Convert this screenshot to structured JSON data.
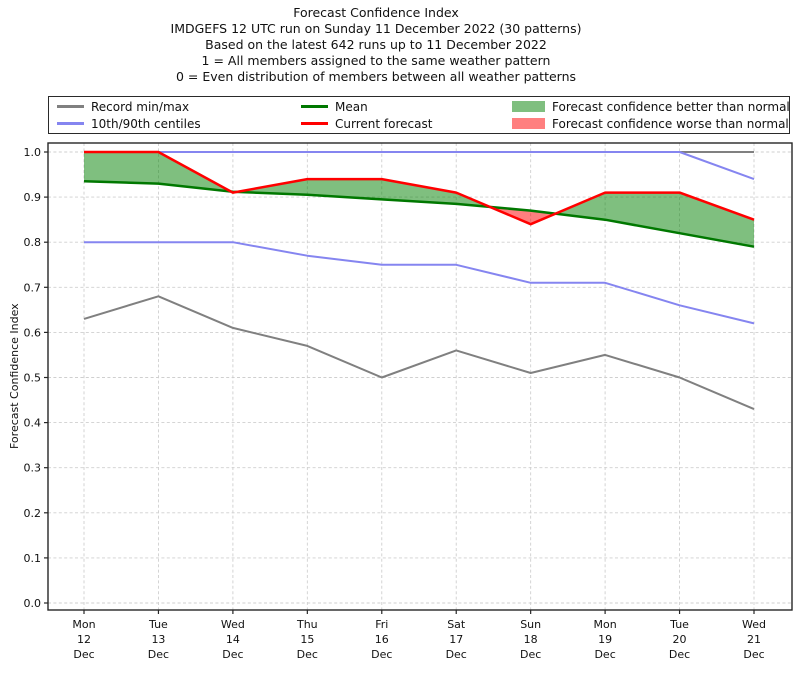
{
  "chart_data": {
    "type": "line",
    "title_lines": [
      "Forecast Confidence Index",
      "IMDGEFS 12 UTC run on Sunday 11 December 2022 (30 patterns)",
      "Based on the latest 642 runs up to 11 December 2022",
      "1 = All members assigned to the same weather pattern",
      "0 = Even distribution of members between all weather patterns"
    ],
    "ylabel": "Forecast Confidence Index",
    "ylim": [
      0.0,
      1.0
    ],
    "ytick_labels": [
      "0.0",
      "0.1",
      "0.2",
      "0.3",
      "0.4",
      "0.5",
      "0.6",
      "0.7",
      "0.8",
      "0.9",
      "1.0"
    ],
    "grid": "dashed",
    "legend_position": "top",
    "categories": [
      [
        "Mon",
        "12",
        "Dec"
      ],
      [
        "Tue",
        "13",
        "Dec"
      ],
      [
        "Wed",
        "14",
        "Dec"
      ],
      [
        "Thu",
        "15",
        "Dec"
      ],
      [
        "Fri",
        "16",
        "Dec"
      ],
      [
        "Sat",
        "17",
        "Dec"
      ],
      [
        "Sun",
        "18",
        "Dec"
      ],
      [
        "Mon",
        "19",
        "Dec"
      ],
      [
        "Tue",
        "20",
        "Dec"
      ],
      [
        "Wed",
        "21",
        "Dec"
      ]
    ],
    "series": [
      {
        "name": "record-max",
        "color": "#808080",
        "width": 2,
        "values": [
          1.0,
          1.0,
          1.0,
          1.0,
          1.0,
          1.0,
          1.0,
          1.0,
          1.0,
          1.0
        ]
      },
      {
        "name": "record-min",
        "color": "#808080",
        "width": 2,
        "values": [
          0.63,
          0.68,
          0.61,
          0.57,
          0.5,
          0.56,
          0.51,
          0.55,
          0.5,
          0.43
        ]
      },
      {
        "name": "centile-90th",
        "color": "#8585f0",
        "width": 2,
        "values": [
          1.0,
          1.0,
          1.0,
          1.0,
          1.0,
          1.0,
          1.0,
          1.0,
          1.0,
          0.94
        ]
      },
      {
        "name": "centile-10th",
        "color": "#8585f0",
        "width": 2,
        "values": [
          0.8,
          0.8,
          0.8,
          0.77,
          0.75,
          0.75,
          0.71,
          0.71,
          0.66,
          0.62
        ]
      },
      {
        "name": "mean",
        "color": "#007800",
        "width": 2.5,
        "values": [
          0.935,
          0.93,
          0.912,
          0.905,
          0.895,
          0.885,
          0.87,
          0.85,
          0.82,
          0.79
        ]
      },
      {
        "name": "current-forecast",
        "color": "#ff0000",
        "width": 2.5,
        "values": [
          1.0,
          1.0,
          0.91,
          0.94,
          0.94,
          0.91,
          0.84,
          0.91,
          0.91,
          0.85
        ]
      }
    ],
    "fills": {
      "between": [
        "current-forecast",
        "mean"
      ],
      "better": {
        "color": "#008000",
        "opacity": 0.5
      },
      "worse": {
        "color": "#ff0000",
        "opacity": 0.5
      }
    }
  },
  "legend": {
    "items": [
      {
        "label": "Record min/max",
        "type": "line",
        "color": "#808080"
      },
      {
        "label": "10th/90th centiles",
        "type": "line",
        "color": "#8585f0"
      },
      {
        "label": "Mean",
        "type": "line",
        "color": "#007800"
      },
      {
        "label": "Current forecast",
        "type": "line",
        "color": "#ff0000"
      },
      {
        "label": "Forecast confidence better than normal",
        "type": "patch",
        "color": "#008000",
        "opacity": 0.5
      },
      {
        "label": "Forecast confidence worse than normal",
        "type": "patch",
        "color": "#ff0000",
        "opacity": 0.5
      }
    ]
  }
}
